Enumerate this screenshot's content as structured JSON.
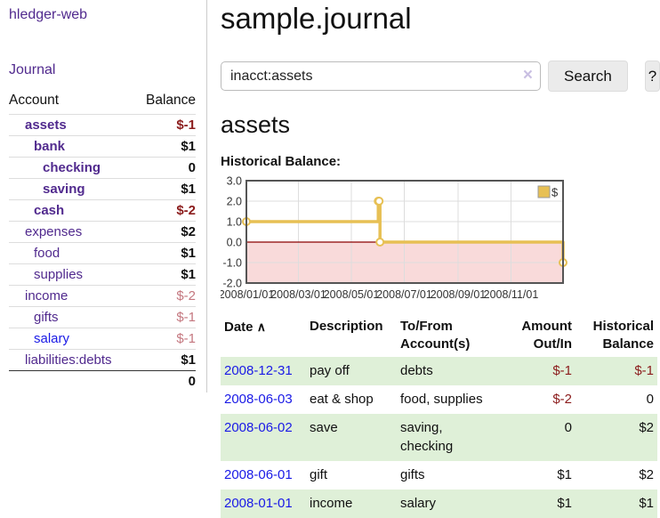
{
  "colors": {
    "link_purple": "#512a8e",
    "link_blue": "#1a1ae6",
    "negative_strong": "#8b1c1c",
    "negative_soft": "#c4777f",
    "row_stripe_green": "#dff0d8",
    "chart_line_gold": "#e7c054",
    "chart_negative_region": "#f9dada",
    "chart_zero_line": "#8b0000",
    "chart_border": "#555555"
  },
  "sidebar": {
    "brand": "hledger-web",
    "journal_link": "Journal",
    "account_header": "Account",
    "balance_header": "Balance",
    "accounts": [
      {
        "name": "assets",
        "level": 0,
        "name_class": "acct-bold",
        "balance": "$-1",
        "balance_class": "neg-strong"
      },
      {
        "name": "bank",
        "level": 1,
        "name_class": "acct-bold",
        "balance": "$1",
        "balance_class": ""
      },
      {
        "name": "checking",
        "level": 2,
        "name_class": "acct-bold",
        "balance": "0",
        "balance_class": ""
      },
      {
        "name": "saving",
        "level": 2,
        "name_class": "acct-bold",
        "balance": "$1",
        "balance_class": ""
      },
      {
        "name": "cash",
        "level": 1,
        "name_class": "acct-bold",
        "balance": "$-2",
        "balance_class": "neg-strong"
      },
      {
        "name": "expenses",
        "level": 0,
        "name_class": "",
        "balance": "$2",
        "balance_class": ""
      },
      {
        "name": "food",
        "level": 1,
        "name_class": "",
        "balance": "$1",
        "balance_class": ""
      },
      {
        "name": "supplies",
        "level": 1,
        "name_class": "",
        "balance": "$1",
        "balance_class": ""
      },
      {
        "name": "income",
        "level": 0,
        "name_class": "",
        "balance": "$-2",
        "balance_class": "neg-soft"
      },
      {
        "name": "gifts",
        "level": 1,
        "name_class": "",
        "balance": "$-1",
        "balance_class": "neg-soft"
      },
      {
        "name": "salary",
        "level": 1,
        "name_class": "link-blue",
        "balance": "$-1",
        "balance_class": "neg-soft"
      },
      {
        "name": "liabilities:debts",
        "level": 0,
        "name_class": "",
        "balance": "$1",
        "balance_class": ""
      }
    ],
    "total": "0"
  },
  "main": {
    "page_title": "sample.journal",
    "search": {
      "value": "inacct:assets",
      "clear_icon": "×",
      "button_label": "Search",
      "help_label": "?"
    },
    "account_title": "assets",
    "chart_label": "Historical Balance:",
    "table": {
      "headers": {
        "date": "Date",
        "sort_icon": "∧",
        "description": "Description",
        "accounts": "To/From Account(s)",
        "amount": "Amount Out/In",
        "balance": "Historical Balance"
      },
      "rows": [
        {
          "date": "2008-12-31",
          "description": "pay off",
          "accounts": "debts",
          "amount": "$-1",
          "amount_class": "neg-strong",
          "balance": "$-1",
          "balance_class": "neg-strong"
        },
        {
          "date": "2008-06-03",
          "description": "eat & shop",
          "accounts": "food, supplies",
          "amount": "$-2",
          "amount_class": "neg-strong",
          "balance": "0",
          "balance_class": ""
        },
        {
          "date": "2008-06-02",
          "description": "save",
          "accounts": "saving, checking",
          "amount": "0",
          "amount_class": "",
          "balance": "$2",
          "balance_class": ""
        },
        {
          "date": "2008-06-01",
          "description": "gift",
          "accounts": "gifts",
          "amount": "$1",
          "amount_class": "",
          "balance": "$2",
          "balance_class": ""
        },
        {
          "date": "2008-01-01",
          "description": "income",
          "accounts": "salary",
          "amount": "$1",
          "amount_class": "",
          "balance": "$1",
          "balance_class": ""
        }
      ]
    }
  },
  "chart_data": {
    "type": "line",
    "step": true,
    "title": "Historical Balance",
    "series": [
      {
        "name": "$",
        "color": "#e7c054",
        "points": [
          [
            "2008-01-01",
            1
          ],
          [
            "2008-06-01",
            2
          ],
          [
            "2008-06-02",
            2
          ],
          [
            "2008-06-03",
            0
          ],
          [
            "2008-12-31",
            -1
          ]
        ]
      }
    ],
    "x_range": [
      "2008-01-01",
      "2008-12-31"
    ],
    "x_ticks": [
      "2008-01-01",
      "2008-03-01",
      "2008-05-01",
      "2008-07-01",
      "2008-09-01",
      "2008-11-01"
    ],
    "x_tick_labels": [
      "2008/01/01",
      "2008/03/01",
      "2008/05/01",
      "2008/07/01",
      "2008/09/01",
      "2008/11/01"
    ],
    "y_ticks": [
      3,
      2,
      1,
      0,
      -1,
      -2
    ],
    "y_tick_labels": [
      "3.0",
      "2.0",
      "1.0",
      "0.0",
      "-1.0",
      "-2.0"
    ],
    "ylim": [
      -2,
      3
    ],
    "grid": true,
    "legend_position": "top-right"
  }
}
